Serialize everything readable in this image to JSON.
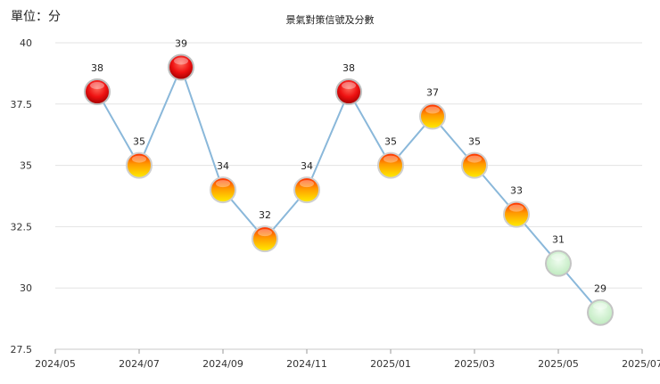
{
  "header": {
    "unit_label": "單位：分",
    "title": "景氣對策信號及分數"
  },
  "colors": {
    "line": "#8ab8da",
    "grid": "#e3e3e3",
    "axis": "#c8c8c8",
    "red_signal": "#ee1111",
    "yellow_red_signal": "#ffcc00",
    "green_signal": "#c8f0c8"
  },
  "chart_data": {
    "type": "line",
    "title": "景氣對策信號及分數",
    "ylabel": "單位：分",
    "xlabel": "",
    "ylim": [
      27.5,
      40
    ],
    "yticks": [
      "27.5",
      "30",
      "32.5",
      "35",
      "37.5",
      "40"
    ],
    "xlim": [
      "2024/05",
      "2025/07"
    ],
    "xticks": [
      "2024/05",
      "2024/07",
      "2024/09",
      "2024/11",
      "2025/01",
      "2025/03",
      "2025/05",
      "2025/07"
    ],
    "grid": "horizontal",
    "series": [
      {
        "points": [
          {
            "x": "2024/06",
            "y": 38,
            "signal": "red"
          },
          {
            "x": "2024/07",
            "y": 35,
            "signal": "yellow-red"
          },
          {
            "x": "2024/08",
            "y": 39,
            "signal": "red"
          },
          {
            "x": "2024/09",
            "y": 34,
            "signal": "yellow-red"
          },
          {
            "x": "2024/10",
            "y": 32,
            "signal": "yellow-red"
          },
          {
            "x": "2024/11",
            "y": 34,
            "signal": "yellow-red"
          },
          {
            "x": "2024/12",
            "y": 38,
            "signal": "red"
          },
          {
            "x": "2025/01",
            "y": 35,
            "signal": "yellow-red"
          },
          {
            "x": "2025/02",
            "y": 37,
            "signal": "yellow-red"
          },
          {
            "x": "2025/03",
            "y": 35,
            "signal": "yellow-red"
          },
          {
            "x": "2025/04",
            "y": 33,
            "signal": "yellow-red"
          },
          {
            "x": "2025/05",
            "y": 31,
            "signal": "green"
          },
          {
            "x": "2025/06",
            "y": 29,
            "signal": "green"
          }
        ]
      }
    ]
  }
}
